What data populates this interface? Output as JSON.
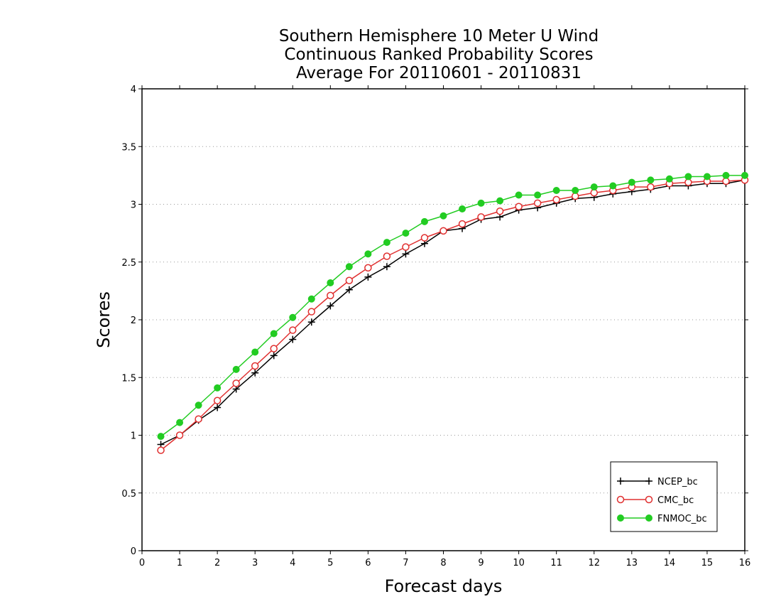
{
  "chart_data": {
    "type": "line",
    "title": [
      "Southern Hemisphere 10 Meter U Wind",
      "Continuous Ranked Probability Scores",
      "Average For 20110601 - 20110831"
    ],
    "xlabel": "Forecast days",
    "ylabel": "Scores",
    "xlim": [
      0,
      16
    ],
    "ylim": [
      0,
      4
    ],
    "xticks": [
      "0",
      "1",
      "2",
      "3",
      "4",
      "5",
      "6",
      "7",
      "8",
      "9",
      "10",
      "11",
      "12",
      "13",
      "14",
      "15",
      "16"
    ],
    "yticks": [
      "0",
      "0.5",
      "1",
      "1.5",
      "2",
      "2.5",
      "3",
      "3.5",
      "4"
    ],
    "grid": "horizontal-dotted",
    "legend_position": "bottom-right",
    "x": [
      0.5,
      1,
      1.5,
      2,
      2.5,
      3,
      3.5,
      4,
      4.5,
      5,
      5.5,
      6,
      6.5,
      7,
      7.5,
      8,
      8.5,
      9,
      9.5,
      10,
      10.5,
      11,
      11.5,
      12,
      12.5,
      13,
      13.5,
      14,
      14.5,
      15,
      15.5,
      16
    ],
    "series": [
      {
        "name": "NCEP_bc",
        "color": "#000000",
        "marker": "plus",
        "values": [
          0.92,
          1.0,
          1.13,
          1.24,
          1.4,
          1.54,
          1.69,
          1.83,
          1.98,
          2.12,
          2.26,
          2.37,
          2.46,
          2.57,
          2.66,
          2.77,
          2.79,
          2.87,
          2.89,
          2.95,
          2.97,
          3.01,
          3.05,
          3.06,
          3.09,
          3.11,
          3.13,
          3.16,
          3.16,
          3.18,
          3.18,
          3.21
        ]
      },
      {
        "name": "CMC_bc",
        "color": "#e03030",
        "marker": "open-circle",
        "values": [
          0.87,
          1.0,
          1.14,
          1.3,
          1.45,
          1.6,
          1.75,
          1.91,
          2.07,
          2.21,
          2.34,
          2.45,
          2.55,
          2.63,
          2.71,
          2.77,
          2.83,
          2.89,
          2.94,
          2.98,
          3.01,
          3.04,
          3.07,
          3.1,
          3.12,
          3.15,
          3.15,
          3.18,
          3.19,
          3.2,
          3.2,
          3.21
        ]
      },
      {
        "name": "FNMOC_bc",
        "color": "#22cc22",
        "marker": "filled-circle",
        "values": [
          0.99,
          1.11,
          1.26,
          1.41,
          1.57,
          1.72,
          1.88,
          2.02,
          2.18,
          2.32,
          2.46,
          2.57,
          2.67,
          2.75,
          2.85,
          2.9,
          2.96,
          3.01,
          3.03,
          3.08,
          3.08,
          3.12,
          3.12,
          3.15,
          3.16,
          3.19,
          3.21,
          3.22,
          3.24,
          3.24,
          3.25,
          3.25
        ]
      }
    ]
  }
}
